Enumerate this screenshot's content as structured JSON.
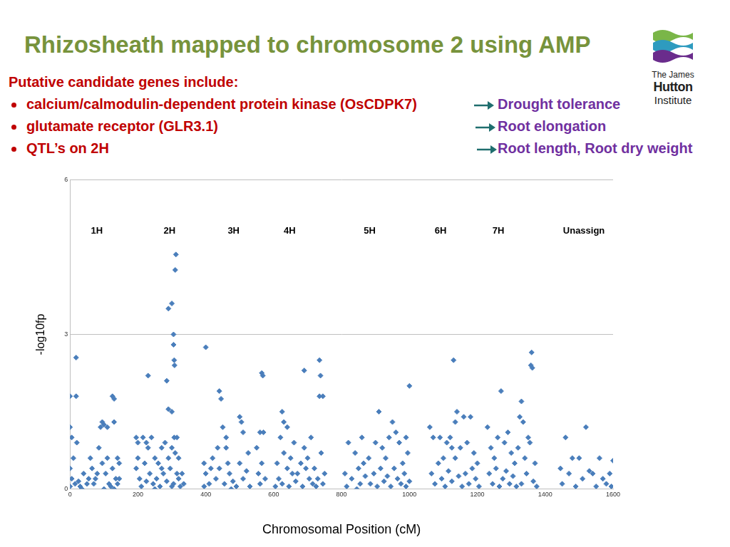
{
  "header": {
    "title": "Rhizosheath mapped to chromosome 2 using AMP"
  },
  "logo": {
    "lines": [
      "The James",
      "Hutton",
      "Institute"
    ]
  },
  "list": {
    "heading": "Putative candidate genes include:",
    "items": [
      {
        "text": "calcium/calmodulin-dependent protein kinase (OsCDPK7)",
        "effect": "Drought tolerance"
      },
      {
        "text": "glutamate receptor (GLR3.1)",
        "effect": "Root elongation"
      },
      {
        "text": "QTL’s on 2H",
        "effect": "Root length, Root dry weight"
      }
    ]
  },
  "chart_data": {
    "type": "scatter",
    "x_label": "Chromosomal Position (cM)",
    "y_label": "-log10fp",
    "color": "#4a7ebb",
    "marker": "diamond",
    "grid": "y",
    "xlim": [
      0,
      1600
    ],
    "xticks": [
      0,
      200,
      400,
      600,
      800,
      1000,
      1200,
      1400,
      1600
    ],
    "ylim": [
      0,
      6
    ],
    "yticks": [
      0,
      3,
      6
    ],
    "annotations": [
      {
        "text": "1H",
        "x": 79,
        "y": 5
      },
      {
        "text": "2H",
        "x": 293,
        "y": 5
      },
      {
        "text": "3H",
        "x": 482,
        "y": 5
      },
      {
        "text": "4H",
        "x": 647,
        "y": 5
      },
      {
        "text": "5H",
        "x": 883,
        "y": 5
      },
      {
        "text": "6H",
        "x": 1092,
        "y": 5
      },
      {
        "text": "7H",
        "x": 1262,
        "y": 5
      },
      {
        "text": "Unassign",
        "x": 1514,
        "y": 5
      }
    ],
    "x": [
      0,
      18,
      18,
      0,
      5,
      20,
      90,
      95,
      100,
      110,
      125,
      130,
      130,
      140,
      145,
      10,
      0,
      5,
      15,
      25,
      30,
      40,
      50,
      55,
      60,
      65,
      70,
      80,
      85,
      95,
      105,
      110,
      115,
      120,
      125,
      135,
      140,
      0,
      35,
      75,
      100,
      130,
      145,
      230,
      285,
      290,
      300,
      310,
      312,
      305,
      305,
      307,
      308,
      290,
      300,
      307,
      315,
      195,
      200,
      215,
      225,
      230,
      240,
      250,
      260,
      270,
      280,
      290,
      300,
      310,
      320,
      330,
      195,
      205,
      210,
      220,
      235,
      245,
      255,
      265,
      275,
      285,
      295,
      305,
      315,
      325,
      335,
      200,
      250,
      300,
      270,
      225,
      320,
      400,
      440,
      445,
      450,
      460,
      500,
      505,
      510,
      460,
      420,
      395,
      400,
      410,
      430,
      440,
      455,
      470,
      480,
      490,
      500,
      510,
      520,
      530,
      415,
      465,
      525,
      475,
      395,
      435,
      565,
      568,
      560,
      570,
      550,
      555,
      560,
      565,
      575,
      625,
      630,
      620,
      640,
      690,
      735,
      738,
      735,
      745,
      610,
      615,
      630,
      640,
      650,
      660,
      670,
      680,
      690,
      700,
      710,
      720,
      730,
      740,
      750,
      605,
      625,
      645,
      665,
      685,
      705,
      725,
      745,
      655,
      695,
      715,
      1000,
      910,
      950,
      960,
      990,
      820,
      840,
      860,
      880,
      900,
      920,
      940,
      970,
      980,
      995,
      810,
      815,
      830,
      850,
      855,
      870,
      885,
      895,
      905,
      915,
      925,
      935,
      945,
      955,
      965,
      975,
      985,
      1000,
      865,
      930,
      990,
      845,
      1130,
      1140,
      1135,
      1160,
      1180,
      1060,
      1070,
      1090,
      1110,
      1120,
      1150,
      1170,
      1190,
      1200,
      1065,
      1075,
      1085,
      1095,
      1105,
      1115,
      1125,
      1135,
      1145,
      1155,
      1165,
      1175,
      1185,
      1195,
      1205,
      1100,
      1125,
      1270,
      1330,
      1325,
      1335,
      1360,
      1358,
      1362,
      1350,
      1355,
      1230,
      1240,
      1250,
      1260,
      1280,
      1290,
      1300,
      1310,
      1320,
      1340,
      1370,
      1235,
      1245,
      1255,
      1265,
      1275,
      1285,
      1295,
      1305,
      1315,
      1345,
      1365,
      1375,
      1330,
      1460,
      1480,
      1500,
      1520,
      1530,
      1540,
      1560,
      1570,
      1590,
      1600,
      1450,
      1470,
      1490,
      1510,
      1550,
      1580,
      1595,
      1445
    ],
    "values": [
      1.8,
      1.8,
      2.55,
      1.2,
      1.0,
      0.9,
      1.2,
      1.3,
      1.25,
      1.2,
      1.8,
      1.75,
      1.3,
      0.6,
      0.5,
      0.6,
      0.4,
      0.2,
      0.1,
      0.15,
      0.05,
      0.3,
      0.1,
      0.2,
      0.6,
      0.4,
      0.1,
      0.3,
      0.8,
      0.5,
      0.3,
      0.6,
      0.1,
      0.05,
      0.4,
      0.2,
      0.1,
      0.05,
      0.0,
      0.2,
      0.0,
      0.0,
      0.2,
      2.2,
      2.1,
      3.5,
      3.6,
      4.25,
      4.55,
      3.0,
      2.8,
      2.5,
      2.4,
      1.55,
      1.5,
      1.0,
      1.0,
      1.0,
      0.9,
      1.0,
      0.9,
      0.8,
      1.0,
      0.6,
      0.5,
      0.8,
      0.9,
      0.6,
      0.8,
      0.7,
      0.6,
      0.3,
      0.4,
      0.2,
      0.05,
      0.5,
      0.3,
      0.1,
      0.2,
      0.05,
      0.3,
      0.15,
      0.4,
      0.1,
      0.3,
      0.05,
      0.1,
      0.6,
      0.0,
      0.05,
      0.4,
      0.15,
      0.2,
      2.75,
      1.9,
      1.75,
      1.2,
      1.0,
      1.4,
      1.3,
      1.1,
      0.8,
      0.6,
      0.5,
      0.3,
      0.1,
      0.2,
      0.4,
      0.1,
      0.3,
      0.15,
      0.05,
      0.5,
      0.2,
      0.35,
      0.05,
      0.4,
      0.5,
      0.7,
      0.0,
      0.05,
      0.8,
      2.25,
      2.2,
      1.1,
      1.1,
      0.8,
      0.3,
      0.1,
      0.5,
      0.2,
      1.5,
      1.3,
      1.0,
      1.2,
      2.3,
      2.5,
      2.2,
      1.8,
      1.8,
      0.5,
      0.2,
      0.7,
      0.4,
      0.6,
      0.9,
      0.3,
      0.5,
      0.8,
      0.6,
      1.0,
      0.4,
      0.2,
      0.7,
      0.3,
      0.05,
      0.1,
      0.05,
      0.15,
      0.05,
      0.2,
      0.05,
      0.1,
      0.3,
      0.4,
      0.1,
      2.0,
      1.5,
      1.3,
      1.1,
      1.0,
      0.9,
      0.7,
      1.0,
      0.6,
      0.9,
      0.8,
      1.0,
      0.9,
      0.5,
      0.7,
      0.3,
      0.05,
      0.2,
      0.4,
      0.1,
      0.25,
      0.1,
      0.3,
      0.05,
      0.4,
      0.15,
      0.25,
      0.05,
      0.4,
      0.2,
      0.1,
      0.3,
      0.15,
      0.5,
      0.6,
      0.05,
      0.0,
      2.5,
      1.5,
      1.3,
      1.4,
      1.4,
      1.2,
      1.0,
      1.0,
      0.9,
      1.0,
      0.8,
      0.9,
      0.7,
      0.5,
      0.3,
      0.1,
      0.5,
      0.2,
      0.05,
      0.35,
      0.15,
      0.6,
      0.25,
      0.05,
      0.3,
      0.1,
      0.4,
      0.2,
      0.05,
      0.6,
      0.8,
      1.9,
      1.7,
      1.4,
      1.3,
      2.65,
      2.4,
      2.35,
      1.0,
      0.9,
      1.2,
      0.8,
      0.6,
      1.0,
      0.9,
      1.1,
      0.7,
      0.5,
      0.8,
      0.6,
      0.5,
      0.3,
      0.1,
      0.4,
      0.05,
      0.2,
      0.35,
      0.1,
      0.25,
      0.05,
      0.3,
      0.15,
      0.05,
      0.1,
      1.0,
      0.6,
      0.6,
      1.2,
      0.35,
      0.3,
      0.6,
      0.2,
      0.3,
      0.55,
      0.1,
      0.3,
      0.05,
      0.2,
      0.05,
      0.1,
      0.05,
      0.4
    ]
  }
}
